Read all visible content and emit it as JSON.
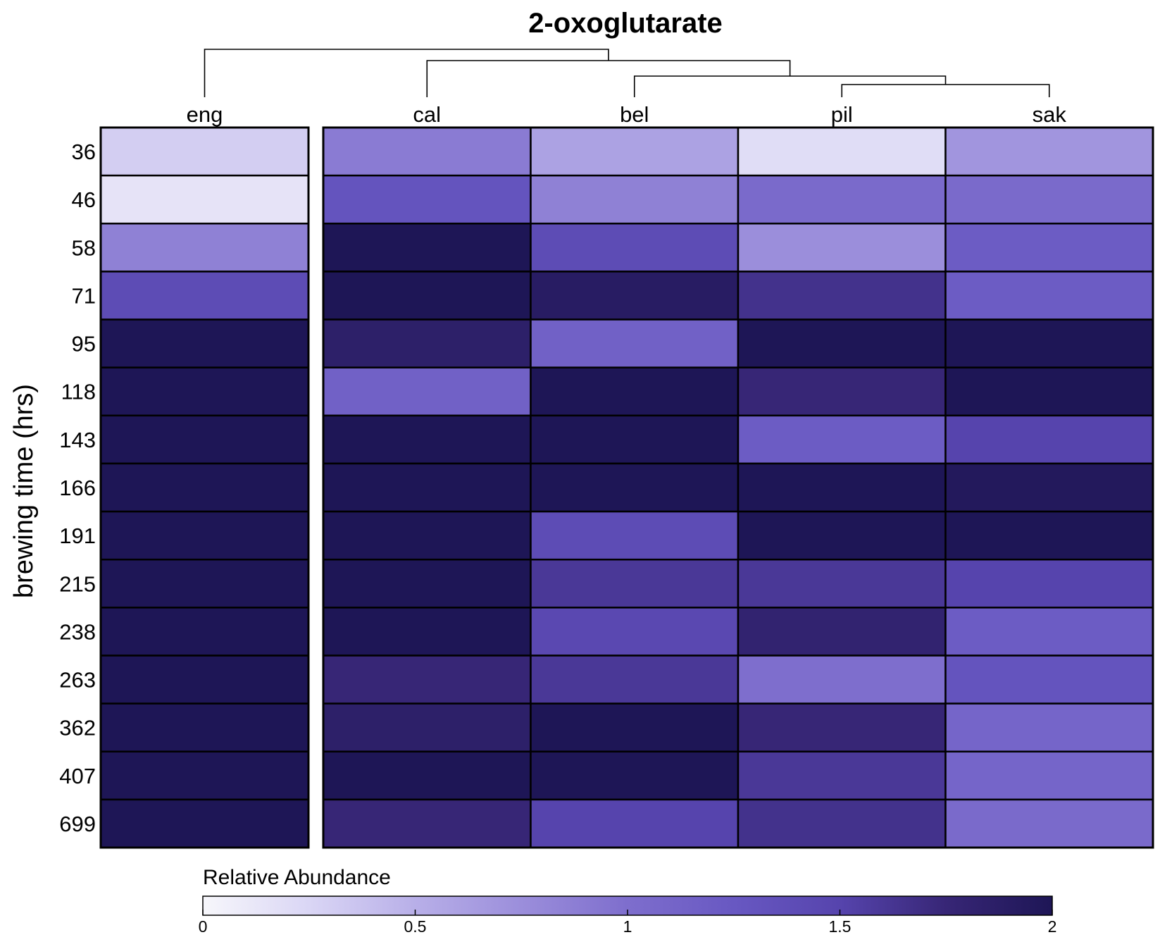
{
  "chart_data": {
    "type": "heatmap",
    "title": "2-oxoglutarate",
    "ylabel": "brewing time (hrs)",
    "columns": [
      "eng",
      "cal",
      "bel",
      "pil",
      "sak"
    ],
    "rows": [
      "36",
      "46",
      "58",
      "71",
      "95",
      "118",
      "143",
      "166",
      "191",
      "215",
      "238",
      "263",
      "362",
      "407",
      "699"
    ],
    "values": [
      [
        0.3,
        0.9,
        0.6,
        0.2,
        0.7
      ],
      [
        0.15,
        1.3,
        0.85,
        1.05,
        1.05
      ],
      [
        0.85,
        2.0,
        1.4,
        0.75,
        1.2
      ],
      [
        1.4,
        2.0,
        1.9,
        1.65,
        1.2
      ],
      [
        2.0,
        1.85,
        1.15,
        2.0,
        2.0
      ],
      [
        2.0,
        1.15,
        2.0,
        1.75,
        2.0
      ],
      [
        2.0,
        2.0,
        2.0,
        1.2,
        1.5
      ],
      [
        2.0,
        2.0,
        2.0,
        2.0,
        1.95
      ],
      [
        2.0,
        2.0,
        1.4,
        2.0,
        2.0
      ],
      [
        2.0,
        2.0,
        1.6,
        1.6,
        1.5
      ],
      [
        2.0,
        2.0,
        1.45,
        1.8,
        1.2
      ],
      [
        2.0,
        1.75,
        1.6,
        1.0,
        1.3
      ],
      [
        2.0,
        1.85,
        2.0,
        1.75,
        1.1
      ],
      [
        2.0,
        2.0,
        2.0,
        1.6,
        1.1
      ],
      [
        2.0,
        1.75,
        1.5,
        1.65,
        1.05
      ]
    ],
    "dendrogram": [
      "eng",
      [
        "cal",
        [
          "bel",
          [
            "pil",
            "sak"
          ]
        ]
      ]
    ],
    "colorbar": {
      "title": "Relative Abundance",
      "range": [
        0,
        2
      ],
      "ticks": [
        "0",
        "0.5",
        "1",
        "1.5",
        "2"
      ],
      "low_color": "#f7f7fb",
      "high_color": "#1e1656"
    },
    "gap_after_column": "eng",
    "grid": true
  }
}
